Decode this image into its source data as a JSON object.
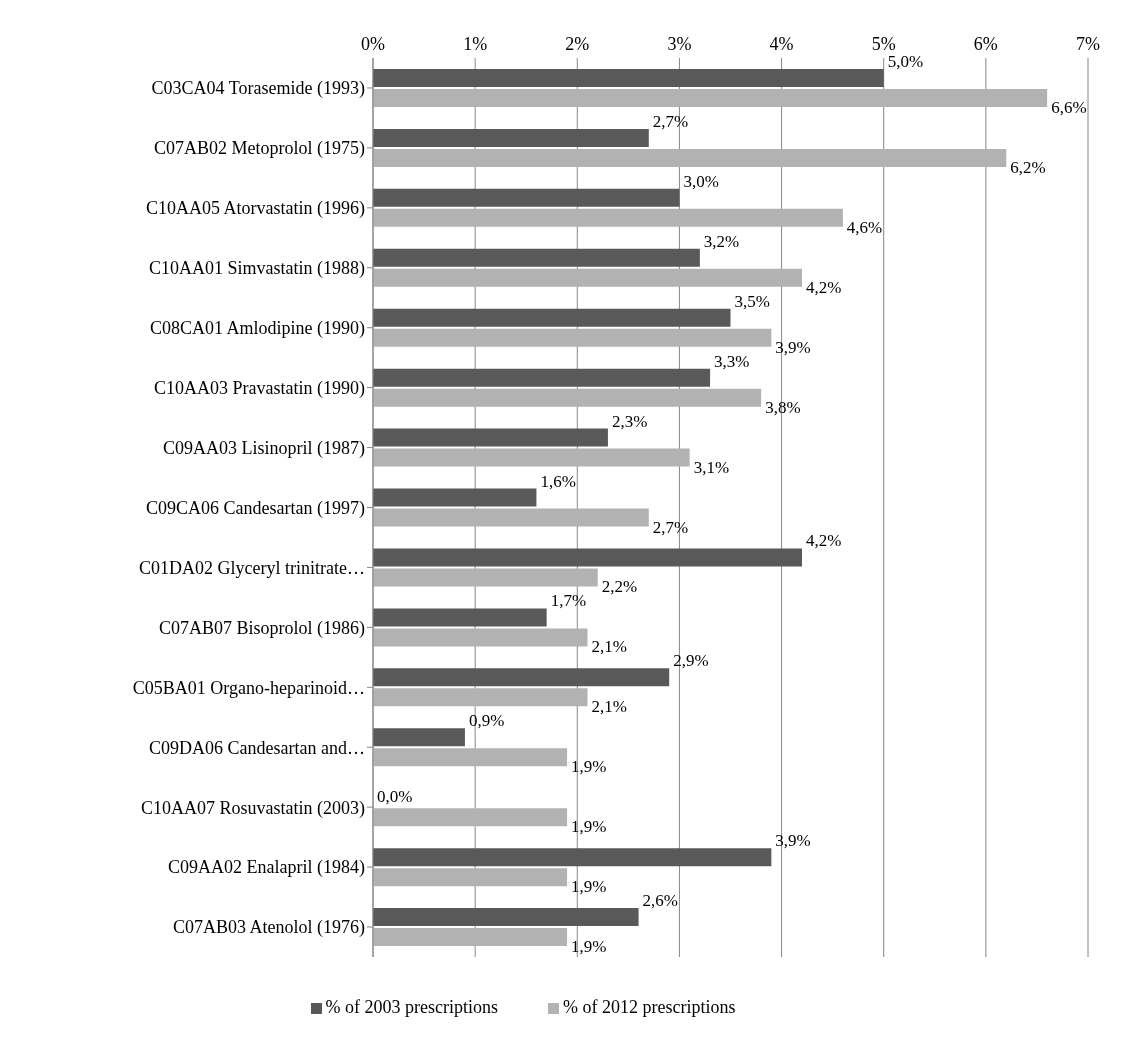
{
  "chart_data": {
    "type": "bar",
    "orientation": "horizontal",
    "categories": [
      "C03CA04 Torasemide (1993)",
      "C07AB02 Metoprolol (1975)",
      "C10AA05 Atorvastatin (1996)",
      "C10AA01 Simvastatin (1988)",
      "C08CA01 Amlodipine (1990)",
      "C10AA03 Pravastatin (1990)",
      "C09AA03 Lisinopril (1987)",
      "C09CA06 Candesartan (1997)",
      "C01DA02 Glyceryl trinitrate…",
      "C07AB07 Bisoprolol (1986)",
      "C05BA01 Organo-heparinoid…",
      "C09DA06 Candesartan and…",
      "C10AA07 Rosuvastatin (2003)",
      "C09AA02 Enalapril (1984)",
      "C07AB03 Atenolol (1976)"
    ],
    "series": [
      {
        "name": "% of 2003 prescriptions",
        "color": "#595959",
        "values": [
          5.0,
          2.7,
          3.0,
          3.2,
          3.5,
          3.3,
          2.3,
          1.6,
          4.2,
          1.7,
          2.9,
          0.9,
          0.0,
          3.9,
          2.6
        ],
        "value_labels": [
          "5,0%",
          "2,7%",
          "3,0%",
          "3,2%",
          "3,5%",
          "3,3%",
          "2,3%",
          "1,6%",
          "4,2%",
          "1,7%",
          "2,9%",
          "0,9%",
          "0,0%",
          "3,9%",
          "2,6%"
        ]
      },
      {
        "name": "% of 2012 prescriptions",
        "color": "#b2b2b2",
        "values": [
          6.6,
          6.2,
          4.6,
          4.2,
          3.9,
          3.8,
          3.1,
          2.7,
          2.2,
          2.1,
          2.1,
          1.9,
          1.9,
          1.9,
          1.9
        ],
        "value_labels": [
          "6,6%",
          "6,2%",
          "4,6%",
          "4,2%",
          "3,9%",
          "3,8%",
          "3,1%",
          "2,7%",
          "2,2%",
          "2,1%",
          "2,1%",
          "1,9%",
          "1,9%",
          "1,9%",
          "1,9%"
        ]
      }
    ],
    "xlim": [
      0,
      7
    ],
    "xticks": [
      {
        "value": 0,
        "label": "0%"
      },
      {
        "value": 1,
        "label": "1%"
      },
      {
        "value": 2,
        "label": "2%"
      },
      {
        "value": 3,
        "label": "3%"
      },
      {
        "value": 4,
        "label": "4%"
      },
      {
        "value": 5,
        "label": "5%"
      },
      {
        "value": 6,
        "label": "6%"
      },
      {
        "value": 7,
        "label": "7%"
      }
    ],
    "grid": "x",
    "legend": "bottom"
  }
}
